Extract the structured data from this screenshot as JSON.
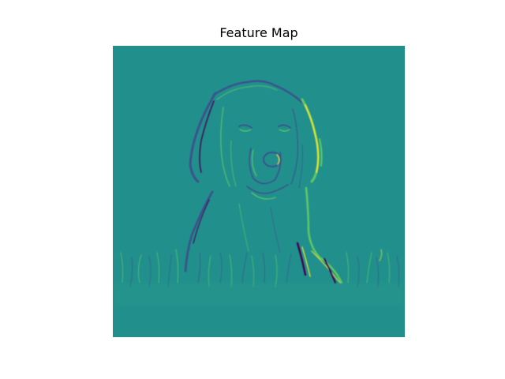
{
  "figure": {
    "title": "Feature Map"
  },
  "image": {
    "subject": "dog-in-grass-edge-feature-map",
    "colormap": "viridis",
    "colors": {
      "background": "#21908d",
      "negative_edge": "#3b528b",
      "deep_negative": "#440154",
      "positive_edge": "#5ec962",
      "strong_positive": "#fde725"
    }
  }
}
